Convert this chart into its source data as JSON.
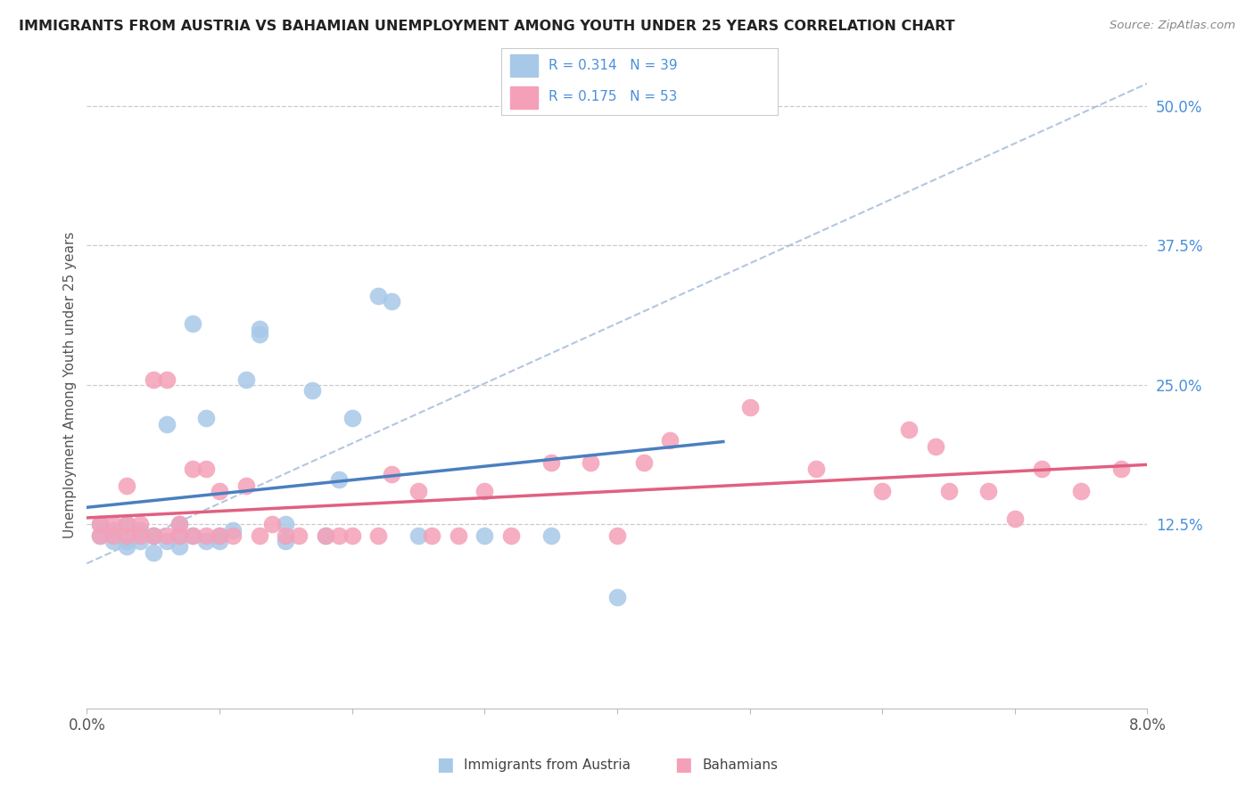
{
  "title": "IMMIGRANTS FROM AUSTRIA VS BAHAMIAN UNEMPLOYMENT AMONG YOUTH UNDER 25 YEARS CORRELATION CHART",
  "source": "Source: ZipAtlas.com",
  "ylabel": "Unemployment Among Youth under 25 years",
  "xlim": [
    0.0,
    0.08
  ],
  "ylim": [
    -0.04,
    0.54
  ],
  "xticks": [
    0.0,
    0.01,
    0.02,
    0.03,
    0.04,
    0.05,
    0.06,
    0.07,
    0.08
  ],
  "xticklabels": [
    "0.0%",
    "",
    "",
    "",
    "",
    "",
    "",
    "",
    "8.0%"
  ],
  "yticks_right": [
    0.125,
    0.25,
    0.375,
    0.5
  ],
  "yticklabels_right": [
    "12.5%",
    "25.0%",
    "37.5%",
    "50.0%"
  ],
  "color_blue": "#a8c8e8",
  "color_pink": "#f4a0b8",
  "color_blue_text": "#4a90d9",
  "color_trend_blue": "#4a7fc0",
  "color_trend_pink": "#e06080",
  "color_dashed": "#a0b8d8",
  "scatter_blue_x": [
    0.001,
    0.001,
    0.002,
    0.002,
    0.003,
    0.003,
    0.003,
    0.004,
    0.004,
    0.005,
    0.005,
    0.005,
    0.006,
    0.006,
    0.007,
    0.007,
    0.007,
    0.008,
    0.008,
    0.009,
    0.009,
    0.01,
    0.01,
    0.011,
    0.012,
    0.013,
    0.013,
    0.015,
    0.015,
    0.017,
    0.018,
    0.019,
    0.02,
    0.022,
    0.023,
    0.025,
    0.03,
    0.035,
    0.04
  ],
  "scatter_blue_y": [
    0.125,
    0.115,
    0.12,
    0.11,
    0.125,
    0.11,
    0.105,
    0.12,
    0.11,
    0.115,
    0.1,
    0.115,
    0.11,
    0.215,
    0.105,
    0.115,
    0.125,
    0.115,
    0.305,
    0.11,
    0.22,
    0.115,
    0.11,
    0.12,
    0.255,
    0.295,
    0.3,
    0.11,
    0.125,
    0.245,
    0.115,
    0.165,
    0.22,
    0.33,
    0.325,
    0.115,
    0.115,
    0.115,
    0.06
  ],
  "scatter_pink_x": [
    0.001,
    0.001,
    0.002,
    0.002,
    0.003,
    0.003,
    0.003,
    0.004,
    0.004,
    0.005,
    0.005,
    0.006,
    0.006,
    0.007,
    0.007,
    0.008,
    0.008,
    0.009,
    0.009,
    0.01,
    0.01,
    0.011,
    0.012,
    0.013,
    0.014,
    0.015,
    0.016,
    0.018,
    0.019,
    0.02,
    0.022,
    0.023,
    0.025,
    0.026,
    0.028,
    0.03,
    0.032,
    0.035,
    0.038,
    0.04,
    0.042,
    0.044,
    0.05,
    0.055,
    0.06,
    0.062,
    0.064,
    0.065,
    0.068,
    0.07,
    0.072,
    0.075,
    0.078
  ],
  "scatter_pink_y": [
    0.125,
    0.115,
    0.115,
    0.125,
    0.115,
    0.125,
    0.16,
    0.115,
    0.125,
    0.115,
    0.255,
    0.115,
    0.255,
    0.115,
    0.125,
    0.115,
    0.175,
    0.115,
    0.175,
    0.115,
    0.155,
    0.115,
    0.16,
    0.115,
    0.125,
    0.115,
    0.115,
    0.115,
    0.115,
    0.115,
    0.115,
    0.17,
    0.155,
    0.115,
    0.115,
    0.155,
    0.115,
    0.18,
    0.18,
    0.115,
    0.18,
    0.2,
    0.23,
    0.175,
    0.155,
    0.21,
    0.195,
    0.155,
    0.155,
    0.13,
    0.175,
    0.155,
    0.175
  ]
}
